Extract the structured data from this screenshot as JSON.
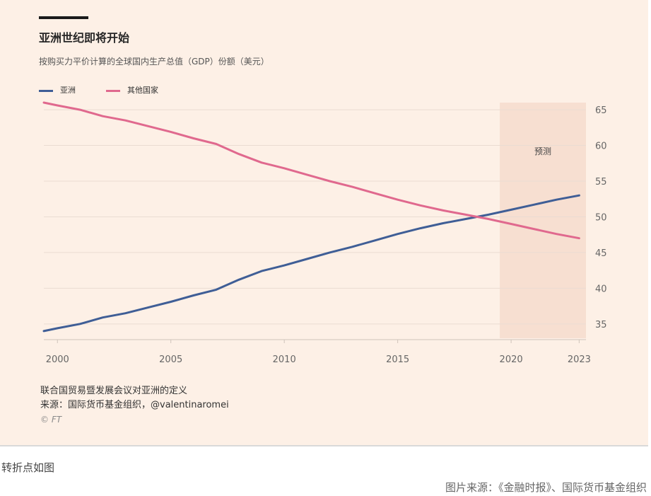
{
  "title": "亚洲世纪即将开始",
  "subtitle": "按购买力平价计算的全球国内生产总值（GDP）份额（美元）",
  "forecast_label": "预测",
  "footnote_1": "联合国贸易暨发展会议对亚洲的定义",
  "footnote_2": "来源：国际货币基金组织，@valentinaromei",
  "copyright": "© FT",
  "caption": "转折点如图",
  "image_credit": "图片来源：《金融时报》、国际货币基金组织",
  "colors": {
    "asia": "#3f5e96",
    "others": "#e0698e",
    "forecast_band": "#f7dfd1",
    "background": "#fdf0e6"
  },
  "chart_data": {
    "type": "line",
    "title": "亚洲世纪即将开始",
    "subtitle": "按购买力平价计算的全球国内生产总值（GDP）份额（美元）",
    "xlabel": "",
    "ylabel": "",
    "x": [
      1999,
      2000,
      2001,
      2002,
      2003,
      2004,
      2005,
      2006,
      2007,
      2008,
      2009,
      2010,
      2011,
      2012,
      2013,
      2014,
      2015,
      2016,
      2017,
      2018,
      2019,
      2020,
      2021,
      2022,
      2023
    ],
    "series": [
      {
        "name": "亚洲",
        "values": [
          34.0,
          34.4,
          35.0,
          35.9,
          36.5,
          37.3,
          38.1,
          39.0,
          39.8,
          41.2,
          42.4,
          43.2,
          44.1,
          45.0,
          45.8,
          46.7,
          47.6,
          48.4,
          49.1,
          49.7,
          50.3,
          51.0,
          51.7,
          52.4,
          53.0
        ]
      },
      {
        "name": "其他国家",
        "values": [
          66.0,
          65.6,
          65.0,
          64.1,
          63.5,
          62.7,
          61.9,
          61.0,
          60.2,
          58.8,
          57.6,
          56.8,
          55.9,
          55.0,
          54.2,
          53.3,
          52.4,
          51.6,
          50.9,
          50.3,
          49.7,
          49.0,
          48.3,
          47.6,
          47.0
        ]
      }
    ],
    "x_ticks": [
      "2000",
      "2005",
      "2010",
      "2015",
      "2020",
      "2023"
    ],
    "y_ticks": [
      "35",
      "40",
      "45",
      "50",
      "55",
      "60",
      "65"
    ],
    "xlim": [
      1999.4,
      2023.3
    ],
    "ylim": [
      33,
      66
    ],
    "forecast_range": [
      2019.5,
      2023.3
    ],
    "forecast_label": "预测",
    "legend_position": "top-left",
    "y_axis_position": "right",
    "grid": true
  }
}
